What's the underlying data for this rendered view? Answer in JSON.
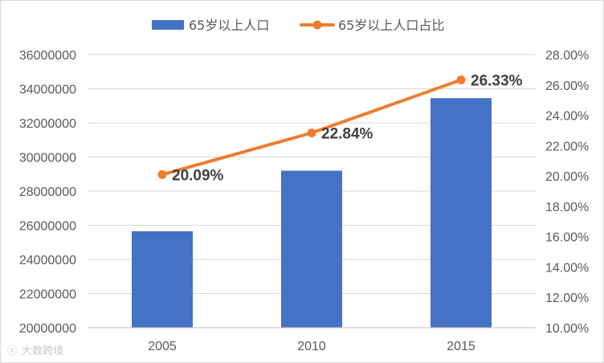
{
  "chart_data": {
    "type": "bar+line",
    "categories": [
      "2005",
      "2010",
      "2015"
    ],
    "series": [
      {
        "name": "65岁以上人口",
        "kind": "bar",
        "axis": "left",
        "color": "#4472C4",
        "values": [
          25650000,
          29200000,
          33450000
        ]
      },
      {
        "name": "65岁以上人口占比",
        "kind": "line",
        "axis": "right",
        "color": "#ED7D31",
        "values": [
          20.09,
          22.84,
          26.33
        ],
        "labels": [
          "20.09%",
          "22.84%",
          "26.33%"
        ]
      }
    ],
    "left_axis": {
      "min": 20000000,
      "max": 36000000,
      "step": 2000000,
      "ticks": [
        "20000000",
        "22000000",
        "24000000",
        "26000000",
        "28000000",
        "30000000",
        "32000000",
        "34000000",
        "36000000"
      ]
    },
    "right_axis": {
      "min": 10,
      "max": 28,
      "step": 2,
      "ticks": [
        "10.00%",
        "12.00%",
        "14.00%",
        "16.00%",
        "18.00%",
        "20.00%",
        "22.00%",
        "24.00%",
        "26.00%",
        "28.00%"
      ]
    },
    "grid": "horizontal",
    "legend_position": "top"
  },
  "watermark": "大数跨境"
}
